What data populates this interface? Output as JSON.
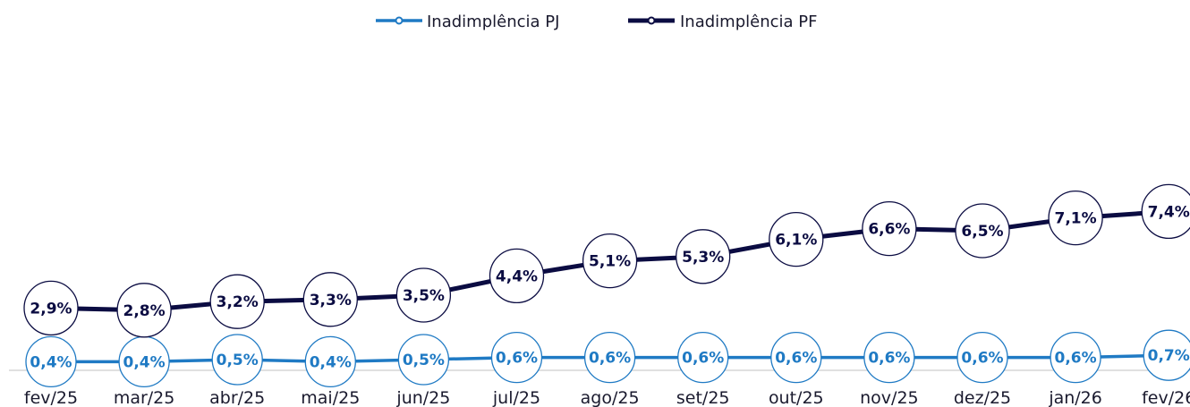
{
  "chart_data": {
    "type": "line",
    "title": "",
    "xlabel": "",
    "ylabel": "",
    "categories": [
      "fev/25",
      "mar/25",
      "abr/25",
      "mai/25",
      "jun/25",
      "jul/25",
      "ago/25",
      "set/25",
      "out/25",
      "nov/25",
      "dez/25",
      "jan/26",
      "fev/26"
    ],
    "series": [
      {
        "name": "Inadimplência PJ",
        "values": [
          0.4,
          0.4,
          0.5,
          0.4,
          0.5,
          0.6,
          0.6,
          0.6,
          0.6,
          0.6,
          0.6,
          0.6,
          0.7
        ],
        "labels": [
          "0,4%",
          "0,4%",
          "0,5%",
          "0,4%",
          "0,5%",
          "0,6%",
          "0,6%",
          "0,6%",
          "0,6%",
          "0,6%",
          "0,6%",
          "0,6%",
          "0,7%"
        ],
        "color": "#1f7ac4"
      },
      {
        "name": "Inadimplência PF",
        "values": [
          2.9,
          2.8,
          3.2,
          3.3,
          3.5,
          4.4,
          5.1,
          5.3,
          6.1,
          6.6,
          6.5,
          7.1,
          7.4
        ],
        "labels": [
          "2,9%",
          "2,8%",
          "3,2%",
          "3,3%",
          "3,5%",
          "4,4%",
          "5,1%",
          "5,3%",
          "6,1%",
          "6,6%",
          "6,5%",
          "7,1%",
          "7,4%"
        ],
        "color": "#0b0c42"
      }
    ],
    "ylim": [
      0,
      14
    ],
    "grid": false,
    "legend": "top-center",
    "unit": "%"
  }
}
